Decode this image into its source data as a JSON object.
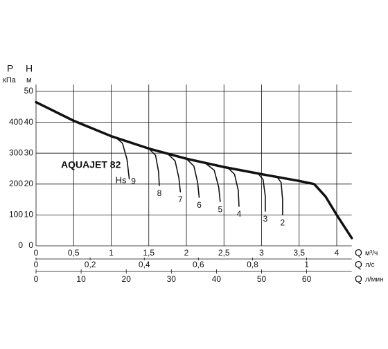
{
  "chart_data": {
    "type": "line",
    "title": "AQUAJET 82",
    "y_label": "H",
    "y_unit": "м",
    "y2_label": "P",
    "y2_unit": "кПа",
    "x_label": "Q",
    "x_unit": "м³/ч",
    "x2_unit": "л/с",
    "x3_unit": "л/мин",
    "suction_label": "Hs",
    "grid": true,
    "xlim": [
      0,
      4.2
    ],
    "xticks": [
      0,
      {
        "value": 0.5,
        "label": "0,5"
      },
      1,
      {
        "value": 1.5,
        "label": "1,5"
      },
      2,
      {
        "value": 2.5,
        "label": "2,5"
      },
      3,
      {
        "value": 3.5,
        "label": "3,5"
      },
      4
    ],
    "x2lim": [
      0,
      1.1667
    ],
    "x2ticks": [
      0,
      {
        "value": 0.2,
        "label": "0,2"
      },
      {
        "value": 0.4,
        "label": "0,4"
      },
      {
        "value": 0.6,
        "label": "0,6"
      },
      {
        "value": 0.8,
        "label": "0,8"
      },
      1
    ],
    "x3lim": [
      0,
      70
    ],
    "x3ticks": [
      0,
      10,
      20,
      30,
      40,
      50,
      60
    ],
    "ylim": [
      0,
      50
    ],
    "yticks": [
      0,
      10,
      20,
      30,
      40,
      50
    ],
    "y2lim": [
      0,
      500
    ],
    "y2ticks": [
      0,
      100,
      200,
      300,
      400
    ],
    "main": {
      "color": "#111111",
      "x": [
        0,
        0.5,
        1,
        1.5,
        2,
        2.5,
        3,
        3.5,
        3.7,
        3.85,
        4,
        4.2
      ],
      "values": [
        46.5,
        40.5,
        35.5,
        31.5,
        28.2,
        25.5,
        23.2,
        21,
        20,
        16,
        10,
        2.5
      ]
    },
    "series": [
      {
        "name": "9",
        "color": "#111111",
        "x": [
          1.05,
          1.15,
          1.21,
          1.24
        ],
        "values": [
          35.3,
          33.2,
          28,
          21.7
        ]
      },
      {
        "name": "8",
        "color": "#111111",
        "x": [
          1.5,
          1.59,
          1.63,
          1.64
        ],
        "values": [
          31.5,
          29.3,
          24,
          19.5
        ]
      },
      {
        "name": "7",
        "color": "#111111",
        "x": [
          1.75,
          1.85,
          1.9,
          1.92
        ],
        "values": [
          29.8,
          27.5,
          22,
          17.5
        ]
      },
      {
        "name": "6",
        "color": "#111111",
        "x": [
          2,
          2.1,
          2.15,
          2.17
        ],
        "values": [
          28.2,
          25.8,
          20.5,
          15.7
        ]
      },
      {
        "name": "5",
        "color": "#111111",
        "x": [
          2.25,
          2.37,
          2.43,
          2.45
        ],
        "values": [
          26.8,
          24.5,
          19,
          14.3
        ]
      },
      {
        "name": "4",
        "color": "#111111",
        "x": [
          2.55,
          2.64,
          2.69,
          2.7
        ],
        "values": [
          25.3,
          23.2,
          18,
          12.8
        ]
      },
      {
        "name": "3",
        "color": "#111111",
        "x": [
          2.95,
          3.02,
          3.05,
          3.05
        ],
        "values": [
          23.5,
          21.5,
          16,
          11.2
        ]
      },
      {
        "name": "2",
        "color": "#111111",
        "x": [
          3.2,
          3.26,
          3.28,
          3.28
        ],
        "values": [
          22.5,
          20.5,
          15,
          10
        ]
      }
    ]
  }
}
